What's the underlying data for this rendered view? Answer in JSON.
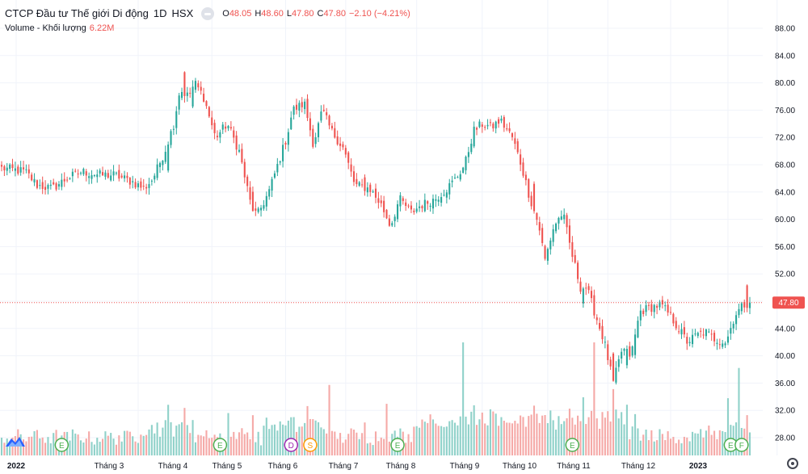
{
  "legend": {
    "symbol": "CTCP Đầu tư Thế giới Di động",
    "timeframe": "1D",
    "exchange": "HSX",
    "open_label": "O",
    "open": "48.05",
    "high_label": "H",
    "high": "48.60",
    "low_label": "L",
    "low": "47.80",
    "close_label": "C",
    "close": "47.80",
    "change": "−2.10 (−4.21%)"
  },
  "volume_legend": {
    "label": "Volume - Khối lượng",
    "value": "6.22M"
  },
  "last_price_tag": "47.80",
  "colors": {
    "up": "#26a69a",
    "down": "#ef5350",
    "vol_up": "#8fd1c9",
    "vol_down": "#f5a9a7",
    "grid": "#f0f3fa"
  },
  "icons": [
    "eye-icon",
    "settings-gear-icon",
    "tradingview-logo-icon"
  ],
  "chart_data": {
    "type": "candlestick",
    "y_axis_ticks": [
      "88.00",
      "84.00",
      "80.00",
      "76.00",
      "72.00",
      "68.00",
      "64.00",
      "60.00",
      "56.00",
      "52.00",
      "48.00",
      "44.00",
      "40.00",
      "36.00",
      "32.00",
      "28.00"
    ],
    "ylim": [
      26,
      90
    ],
    "x_axis_ticks": [
      "2022",
      "Tháng 3",
      "Tháng 4",
      "Tháng 5",
      "Tháng 6",
      "Tháng 7",
      "Tháng 8",
      "Tháng 9",
      "Tháng 10",
      "Tháng 11",
      "Tháng 12",
      "2023"
    ],
    "close_anchors": [
      [
        0,
        67.5
      ],
      [
        8,
        67
      ],
      [
        12,
        65
      ],
      [
        17,
        64.5
      ],
      [
        22,
        66
      ],
      [
        27,
        67
      ],
      [
        33,
        66.5
      ],
      [
        38,
        66.5
      ],
      [
        44,
        65.5
      ],
      [
        48,
        64.5
      ],
      [
        51,
        66
      ],
      [
        55,
        70
      ],
      [
        58,
        74
      ],
      [
        60,
        79
      ],
      [
        63,
        78
      ],
      [
        65,
        80
      ],
      [
        68,
        78
      ],
      [
        72,
        72
      ],
      [
        76,
        74
      ],
      [
        80,
        70
      ],
      [
        84,
        62
      ],
      [
        86,
        60.5
      ],
      [
        90,
        64
      ],
      [
        93,
        68
      ],
      [
        96,
        72
      ],
      [
        98,
        76
      ],
      [
        102,
        77
      ],
      [
        105,
        71
      ],
      [
        108,
        76
      ],
      [
        111,
        73
      ],
      [
        115,
        70.5
      ],
      [
        119,
        65
      ],
      [
        124,
        64.5
      ],
      [
        128,
        62
      ],
      [
        131,
        59
      ],
      [
        134,
        63
      ],
      [
        138,
        61
      ],
      [
        141,
        62
      ],
      [
        146,
        63
      ],
      [
        150,
        64.5
      ],
      [
        153,
        66
      ],
      [
        156,
        68
      ],
      [
        159,
        73
      ],
      [
        162,
        74
      ],
      [
        165,
        73.5
      ],
      [
        168,
        74.5
      ],
      [
        172,
        72
      ],
      [
        175,
        68
      ],
      [
        178,
        63
      ],
      [
        181,
        59
      ],
      [
        183,
        54
      ],
      [
        186,
        59
      ],
      [
        189,
        61
      ],
      [
        192,
        55
      ],
      [
        195,
        50
      ],
      [
        197,
        50
      ],
      [
        200,
        46
      ],
      [
        203,
        42
      ],
      [
        206,
        36
      ],
      [
        209,
        41
      ],
      [
        212,
        40
      ],
      [
        215,
        46.5
      ],
      [
        218,
        47
      ],
      [
        222,
        47.5
      ],
      [
        225,
        46
      ],
      [
        228,
        44
      ],
      [
        231,
        42
      ],
      [
        234,
        43
      ],
      [
        237,
        43.5
      ],
      [
        240,
        42.5
      ],
      [
        244,
        42
      ],
      [
        247,
        46
      ],
      [
        250,
        47.5
      ],
      [
        252,
        47.8
      ]
    ],
    "highlights": [
      [
        56,
        3.8
      ],
      [
        62,
        3.5
      ],
      [
        64,
        2.9
      ],
      [
        85,
        2.8
      ],
      [
        103,
        2.8
      ],
      [
        122,
        2.0
      ],
      [
        179,
        4.0
      ],
      [
        196,
        2.2
      ],
      [
        206,
        4.0
      ],
      [
        211,
        2.4
      ],
      [
        213,
        3.0
      ],
      [
        251,
        3.3
      ]
    ],
    "volume_spikes": [
      [
        76,
        2.2
      ],
      [
        110,
        2.6
      ],
      [
        130,
        4.0
      ],
      [
        155,
        3.2
      ],
      [
        200,
        2.8
      ],
      [
        245,
        2.5
      ],
      [
        248,
        3.0
      ]
    ],
    "last_volume": 6.22,
    "event_markers": [
      {
        "letter": "E",
        "date_index": 22,
        "color": "#4caf50"
      },
      {
        "letter": "E",
        "date_index": 80,
        "color": "#4caf50"
      },
      {
        "letter": "D",
        "date_index": 106,
        "color": "#9c27b0"
      },
      {
        "letter": "S",
        "date_index": 113,
        "color": "#ff9800"
      },
      {
        "letter": "E",
        "date_index": 145,
        "color": "#4caf50"
      },
      {
        "letter": "E",
        "date_index": 209,
        "color": "#4caf50"
      },
      {
        "letter": "E",
        "date_index": 267,
        "color": "#4caf50"
      },
      {
        "letter": "F",
        "date_index": 271,
        "color": "#4caf50"
      }
    ],
    "last_price": 47.8
  }
}
